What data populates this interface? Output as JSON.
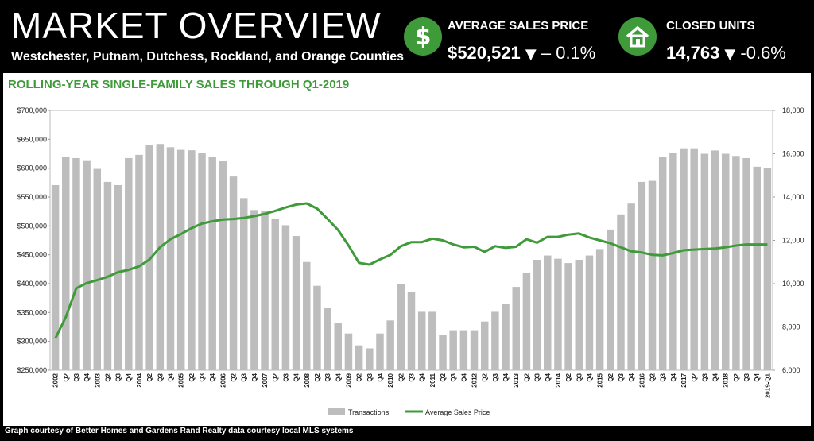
{
  "header": {
    "title": "MARKET OVERVIEW",
    "subtitle": "Westchester, Putnam, Dutchess, Rockland, and Orange Counties"
  },
  "stats": [
    {
      "icon": "dollar-icon",
      "label": "AVERAGE SALES PRICE",
      "value": "$520,521",
      "arrow": "▼",
      "change": "– 0.1%"
    },
    {
      "icon": "house-icon",
      "label": "CLOSED UNITS",
      "value": "14,763",
      "arrow": "▼",
      "change": "-0.6%"
    }
  ],
  "colors": {
    "accent": "#3f9a3a",
    "bars": "#bdbdbd",
    "background": "#000000"
  },
  "footer": "Graph courtesy of Better Homes and Gardens Rand Realty data courtesy local MLS systems",
  "chart_data": {
    "type": "bar+line",
    "title": "ROLLING-YEAR SINGLE-FAMILY SALES THROUGH Q1-2019",
    "categories": [
      "2002",
      "Q2",
      "Q3",
      "Q4",
      "2003",
      "Q2",
      "Q3",
      "Q4",
      "2004",
      "Q2",
      "Q3",
      "Q4",
      "2005",
      "Q2",
      "Q3",
      "Q4",
      "2006",
      "Q2",
      "Q3",
      "Q4",
      "2007",
      "Q2",
      "Q3",
      "Q4",
      "2008",
      "Q2",
      "Q3",
      "Q4",
      "2009",
      "Q2",
      "Q3",
      "Q4",
      "2010",
      "Q2",
      "Q3",
      "Q4",
      "2011",
      "Q2",
      "Q3",
      "Q4",
      "2012",
      "Q2",
      "Q3",
      "Q4",
      "2013",
      "Q2",
      "Q3",
      "Q4",
      "2014",
      "Q2",
      "Q3",
      "Q4",
      "2015",
      "Q2",
      "Q3",
      "Q4",
      "2016",
      "Q2",
      "Q3",
      "Q4",
      "2017",
      "Q2",
      "Q3",
      "Q4",
      "2018",
      "Q2",
      "Q3",
      "Q4",
      "2019-Q1"
    ],
    "y_left": {
      "min": 250000,
      "max": 700000,
      "ticks": [
        "$250,000",
        "$300,000",
        "$350,000",
        "$400,000",
        "$450,000",
        "$500,000",
        "$550,000",
        "$600,000",
        "$650,000",
        "$700,000"
      ]
    },
    "y_right": {
      "min": 6000,
      "max": 18000,
      "ticks": [
        "6,000",
        "8,000",
        "10,000",
        "12,000",
        "14,000",
        "16,000",
        "18,000"
      ]
    },
    "series": [
      {
        "name": "Transactions",
        "type": "bar",
        "axis": "right",
        "values": [
          14550,
          15850,
          15800,
          15700,
          15300,
          14700,
          14550,
          15800,
          15950,
          16400,
          16450,
          16300,
          16180,
          16160,
          16050,
          15850,
          15650,
          14950,
          13950,
          13400,
          13350,
          13000,
          12700,
          12200,
          11000,
          9900,
          8900,
          8200,
          7700,
          7150,
          7010,
          7700,
          8300,
          10000,
          9600,
          8700,
          8700,
          7650,
          7850,
          7850,
          7850,
          8250,
          8700,
          9050,
          9850,
          10500,
          11100,
          11300,
          11150,
          10950,
          11100,
          11300,
          11600,
          12500,
          13200,
          13700,
          14700,
          14750,
          15850,
          16050,
          16250,
          16250,
          16000,
          16150,
          16000,
          15900,
          15800,
          15400,
          15350
        ]
      },
      {
        "name": "Average Sales Price",
        "type": "line",
        "axis": "left",
        "values": [
          305000,
          342000,
          392000,
          401000,
          406000,
          412000,
          420000,
          424000,
          430000,
          442000,
          463000,
          477000,
          486000,
          496000,
          504000,
          508000,
          511000,
          512000,
          514000,
          517000,
          521000,
          526000,
          532000,
          537000,
          539000,
          530000,
          512000,
          493000,
          466000,
          436000,
          433000,
          442000,
          450000,
          465000,
          472000,
          472000,
          478000,
          475000,
          468000,
          463000,
          464000,
          455000,
          465000,
          462000,
          464000,
          477000,
          471000,
          481000,
          481000,
          485000,
          487000,
          480000,
          475000,
          470000,
          463000,
          456000,
          454000,
          450000,
          449000,
          453000,
          458000,
          459000,
          460000,
          461000,
          463000,
          466000,
          468000,
          468000,
          468000
        ]
      }
    ],
    "legend": [
      "Transactions",
      "Average Sales Price"
    ],
    "legend_position": "bottom",
    "grid": true
  }
}
